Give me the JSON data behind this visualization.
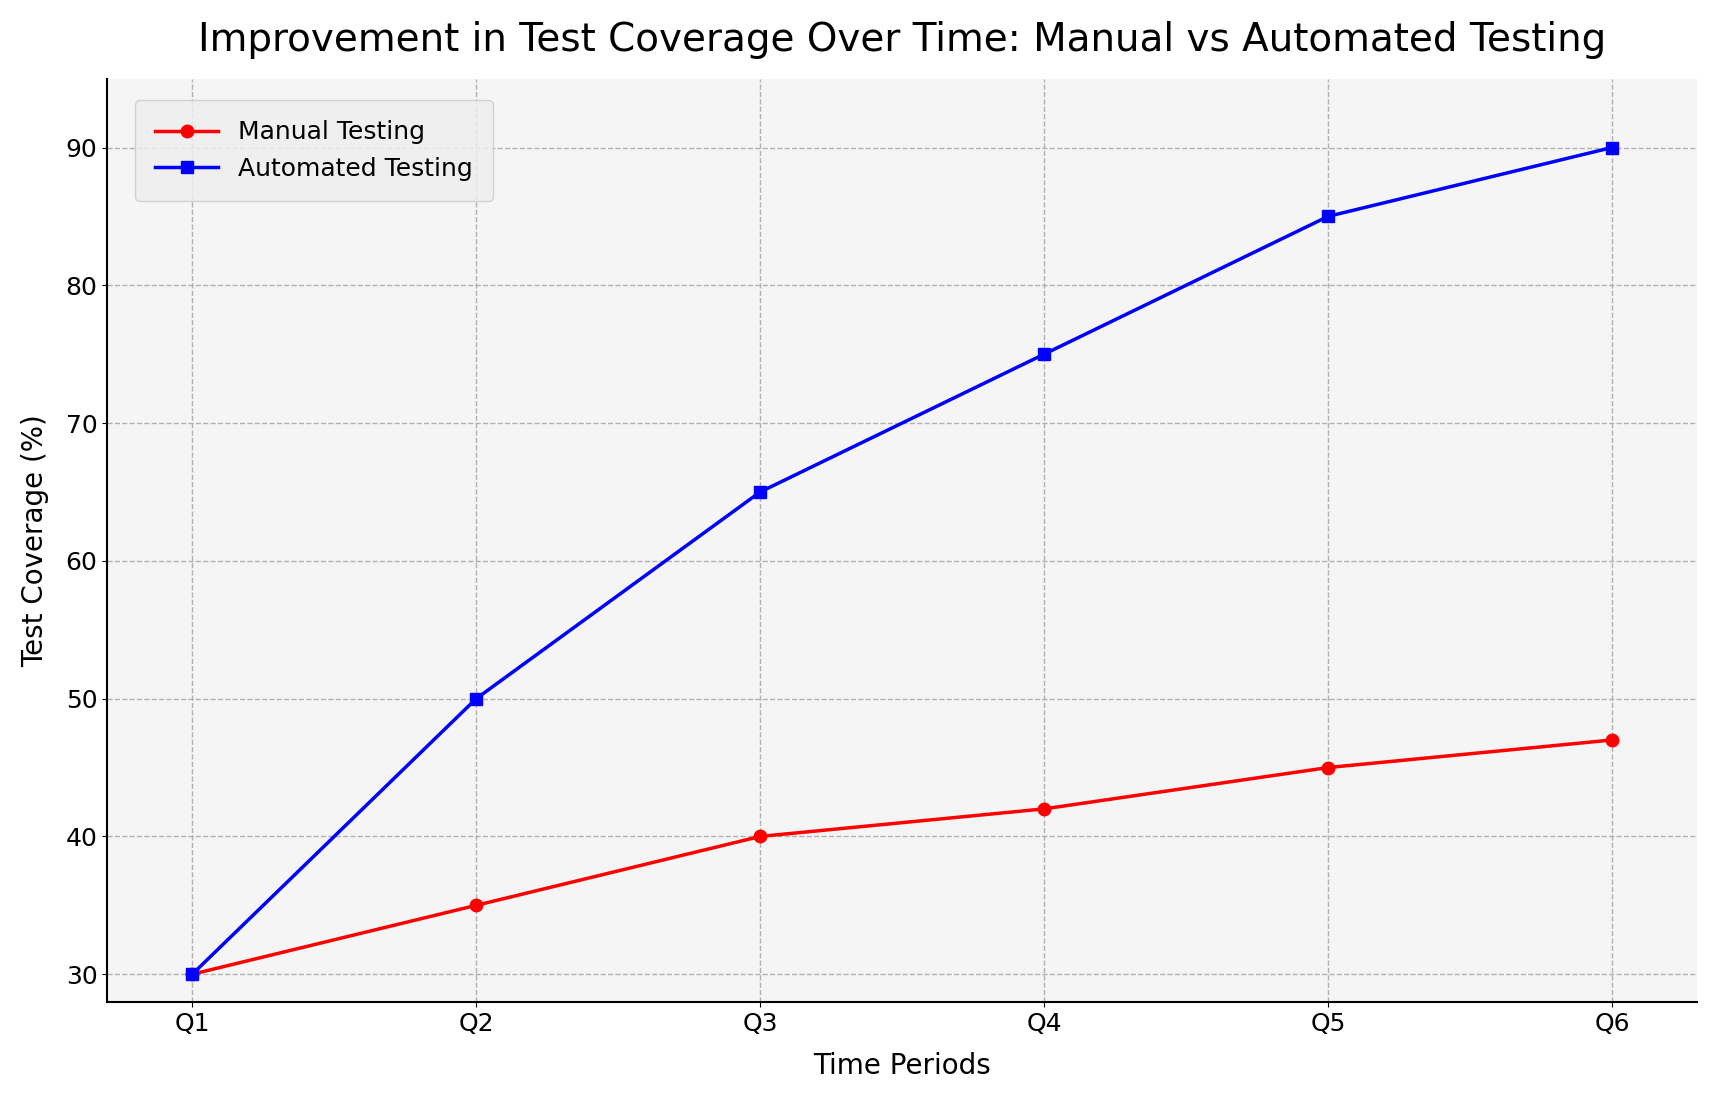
{
  "title": "Improvement in Test Coverage Over Time: Manual vs Automated Testing",
  "xlabel": "Time Periods",
  "ylabel": "Test Coverage (%)",
  "x_labels": [
    "Q1",
    "Q2",
    "Q3",
    "Q4",
    "Q5",
    "Q6"
  ],
  "x_values": [
    0,
    1,
    2,
    3,
    4,
    5
  ],
  "manual_values": [
    30,
    35,
    40,
    42,
    45,
    47
  ],
  "automated_values": [
    30,
    50,
    65,
    75,
    85,
    90
  ],
  "manual_color": "#ff0000",
  "automated_color": "#0000ff",
  "manual_label": "Manual Testing",
  "automated_label": "Automated Testing",
  "ylim_bottom": 28,
  "ylim_top": 95,
  "xlim_left": -0.3,
  "xlim_right": 5.3,
  "background_color": "#ffffff",
  "axes_bg_color": "#f5f5f5",
  "grid_color": "#aaaaaa",
  "title_fontsize": 28,
  "axis_label_fontsize": 20,
  "tick_fontsize": 18,
  "legend_fontsize": 18,
  "linewidth": 2.5,
  "markersize": 9
}
